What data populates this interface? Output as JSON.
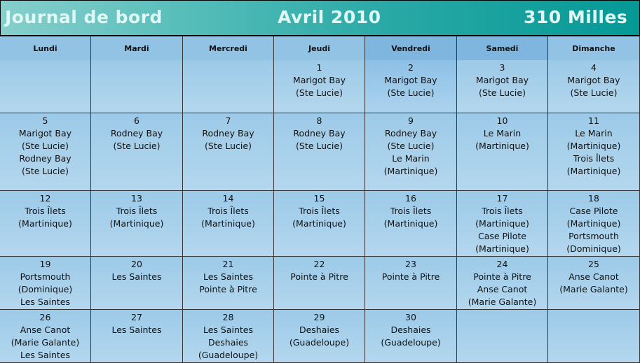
{
  "header": {
    "title": "Journal de bord",
    "month": "Avril 2010",
    "distance": "310 Milles"
  },
  "days": [
    "Lundi",
    "Mardi",
    "Mercredi",
    "Jeudi",
    "Vendredi",
    "Samedi",
    "Dimanche"
  ],
  "weeks": [
    [
      null,
      null,
      null,
      {
        "day": "1",
        "lines": [
          "Marigot Bay",
          "(Ste Lucie)"
        ]
      },
      {
        "day": "2",
        "lines": [
          "Marigot Bay",
          "(Ste Lucie)"
        ]
      },
      {
        "day": "3",
        "lines": [
          "Marigot Bay",
          "(Ste Lucie)"
        ]
      },
      {
        "day": "4",
        "lines": [
          "Marigot Bay",
          "(Ste Lucie)"
        ]
      }
    ],
    [
      {
        "day": "5",
        "lines": [
          "Marigot Bay",
          "(Ste Lucie)",
          "Rodney Bay",
          "(Ste Lucie)"
        ]
      },
      {
        "day": "6",
        "lines": [
          "Rodney Bay",
          "(Ste Lucie)"
        ]
      },
      {
        "day": "7",
        "lines": [
          "Rodney Bay",
          "(Ste Lucie)"
        ]
      },
      {
        "day": "8",
        "lines": [
          "Rodney Bay",
          "(Ste Lucie)"
        ]
      },
      {
        "day": "9",
        "lines": [
          "Rodney Bay",
          "(Ste Lucie)",
          "Le Marin",
          "(Martinique)"
        ]
      },
      {
        "day": "10",
        "lines": [
          "Le Marin",
          "(Martinique)"
        ]
      },
      {
        "day": "11",
        "lines": [
          "Le Marin",
          "(Martinique)",
          "Trois Îlets",
          "(Martinique)"
        ]
      }
    ],
    [
      {
        "day": "12",
        "lines": [
          "Trois Îlets",
          "(Martinique)"
        ]
      },
      {
        "day": "13",
        "lines": [
          "Trois Îlets",
          "(Martinique)"
        ]
      },
      {
        "day": "14",
        "lines": [
          "Trois Îlets",
          "(Martinique)"
        ]
      },
      {
        "day": "15",
        "lines": [
          "Trois Îlets",
          "(Martinique)"
        ]
      },
      {
        "day": "16",
        "lines": [
          "Trois Îlets",
          "(Martinique)"
        ]
      },
      {
        "day": "17",
        "lines": [
          "Trois Îlets",
          "(Martinique)",
          "Case Pilote",
          "(Martinique)"
        ]
      },
      {
        "day": "18",
        "lines": [
          "Case Pilote",
          "(Martinique)",
          "Portsmouth",
          "(Dominique)"
        ]
      }
    ],
    [
      {
        "day": "19",
        "lines": [
          "Portsmouth",
          "(Dominique)",
          "Les Saintes"
        ]
      },
      {
        "day": "20",
        "lines": [
          "Les Saintes"
        ]
      },
      {
        "day": "21",
        "lines": [
          "Les Saintes",
          "Pointe à Pitre"
        ]
      },
      {
        "day": "22",
        "lines": [
          "Pointe à Pitre"
        ]
      },
      {
        "day": "23",
        "lines": [
          "Pointe à Pitre"
        ]
      },
      {
        "day": "24",
        "lines": [
          "Pointe à Pitre",
          "Anse Canot",
          "(Marie Galante)"
        ]
      },
      {
        "day": "25",
        "lines": [
          "Anse Canot",
          "(Marie Galante)"
        ]
      }
    ],
    [
      {
        "day": "26",
        "lines": [
          "Anse Canot",
          "(Marie Galante)",
          "Les Saintes"
        ]
      },
      {
        "day": "27",
        "lines": [
          "Les Saintes"
        ]
      },
      {
        "day": "28",
        "lines": [
          "Les Saintes",
          "Deshaies",
          "(Guadeloupe)"
        ]
      },
      {
        "day": "29",
        "lines": [
          "Deshaies",
          "(Guadeloupe)"
        ]
      },
      {
        "day": "30",
        "lines": [
          "Deshaies",
          "(Guadeloupe)"
        ]
      },
      null,
      null
    ]
  ]
}
